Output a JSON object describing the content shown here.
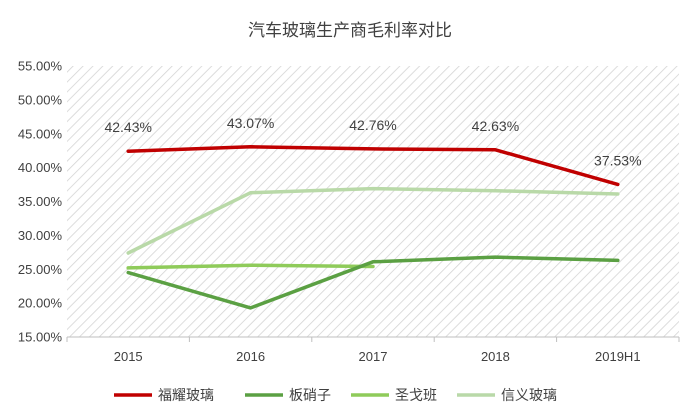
{
  "chart_data": {
    "type": "line",
    "title": "汽车玻璃生产商毛利率对比",
    "xlabel": "",
    "ylabel": "",
    "categories": [
      "2015",
      "2016",
      "2017",
      "2018",
      "2019H1"
    ],
    "y_ticks": [
      "15.00%",
      "20.00%",
      "25.00%",
      "30.00%",
      "35.00%",
      "40.00%",
      "45.00%",
      "50.00%",
      "55.00%"
    ],
    "ylim": [
      15,
      55
    ],
    "grid": false,
    "background": "diagonal-hatch",
    "legend_position": "bottom",
    "series": [
      {
        "name": "福耀玻璃",
        "color": "#C00000",
        "values": [
          42.43,
          43.07,
          42.76,
          42.63,
          37.53
        ],
        "data_labels": [
          "42.43%",
          "43.07%",
          "42.76%",
          "42.63%",
          "37.53%"
        ]
      },
      {
        "name": "板硝子",
        "color": "#5BA043",
        "values": [
          24.5,
          19.3,
          26.1,
          26.8,
          26.3
        ]
      },
      {
        "name": "圣戈班",
        "color": "#8FCB5A",
        "values": [
          25.2,
          25.6,
          25.4,
          null,
          null
        ]
      },
      {
        "name": "信义玻璃",
        "color": "#B9D9A8",
        "values": [
          27.4,
          36.3,
          36.9,
          36.6,
          36.1
        ]
      }
    ]
  }
}
